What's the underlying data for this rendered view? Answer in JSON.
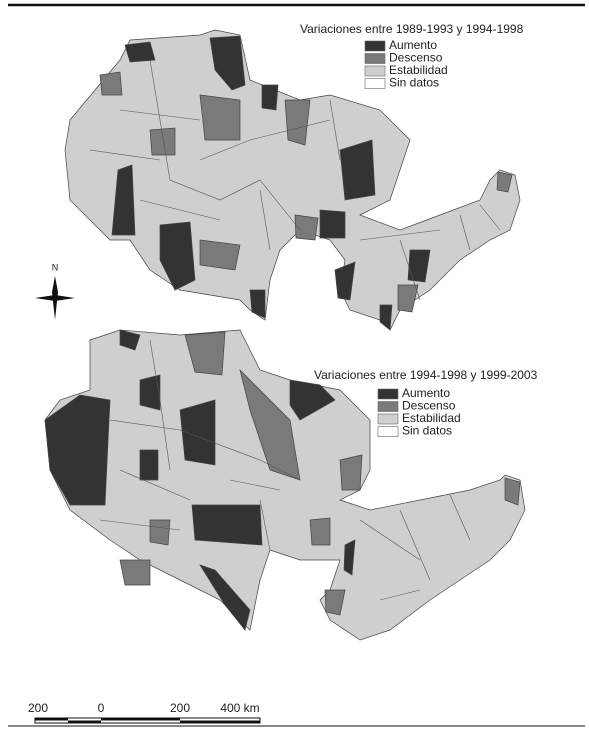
{
  "maps": [
    {
      "title": "Variaciones entre 1989-1993 y 1994-1998",
      "legend": [
        {
          "label": "Aumento",
          "color": "#333333"
        },
        {
          "label": "Descenso",
          "color": "#7a7a7a"
        },
        {
          "label": "Estabilidad",
          "color": "#cfcfcf"
        },
        {
          "label": "Sin datos",
          "color": "#ffffff"
        }
      ]
    },
    {
      "title": "Variaciones entre 1994-1998 y 1999-2003",
      "legend": [
        {
          "label": "Aumento",
          "color": "#333333"
        },
        {
          "label": "Descenso",
          "color": "#7a7a7a"
        },
        {
          "label": "Estabilidad",
          "color": "#cfcfcf"
        },
        {
          "label": "Sin datos",
          "color": "#ffffff"
        }
      ]
    }
  ],
  "north_label": "N",
  "scale_bar": {
    "labels": [
      "200",
      "0",
      "200",
      "400 km"
    ]
  }
}
